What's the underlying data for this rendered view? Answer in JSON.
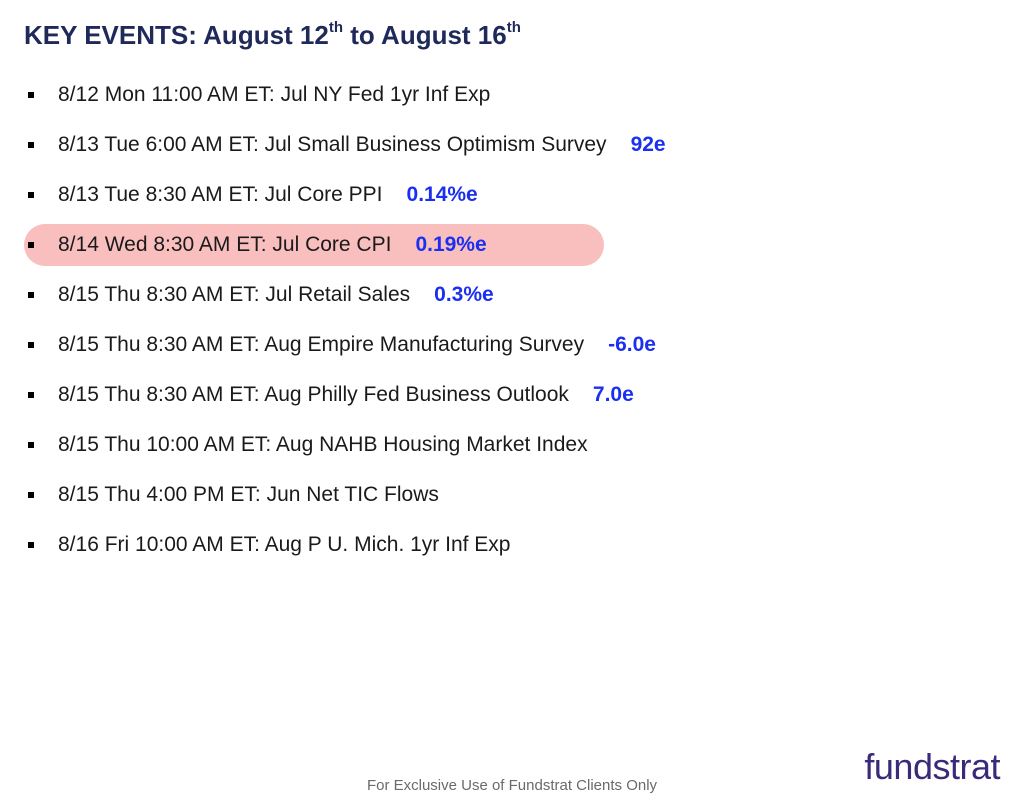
{
  "title": {
    "prefix": "KEY EVENTS: August 12",
    "sup1": "th",
    "mid": " to August 16",
    "sup2": "th"
  },
  "colors": {
    "title_color": "#1f2a5a",
    "text_color": "#1a1a1a",
    "estimate_color": "#1a2ff0",
    "highlight_bg": "#f9bfbf",
    "disclaimer_color": "#6a6a6a",
    "logo_color": "#3b2a7a",
    "bullet_color": "#000000",
    "background": "#ffffff"
  },
  "typography": {
    "title_fontsize": 26,
    "event_fontsize": 21,
    "sup_fontsize": 15,
    "disclaimer_fontsize": 15,
    "logo_fontsize": 36
  },
  "events": [
    {
      "text": "8/12 Mon 11:00 AM ET: Jul NY Fed 1yr Inf Exp",
      "estimate": "",
      "highlighted": false
    },
    {
      "text": "8/13 Tue 6:00 AM ET: Jul Small Business Optimism Survey",
      "estimate": "92e",
      "highlighted": false
    },
    {
      "text": "8/13 Tue 8:30 AM ET: Jul Core PPI",
      "estimate": "0.14%e",
      "highlighted": false
    },
    {
      "text": "8/14 Wed 8:30 AM ET: Jul Core CPI",
      "estimate": "0.19%e",
      "highlighted": true,
      "highlight_width": 580
    },
    {
      "text": "8/15 Thu 8:30 AM ET: Jul Retail Sales",
      "estimate": "0.3%e",
      "highlighted": false
    },
    {
      "text": "8/15 Thu 8:30 AM ET: Aug Empire Manufacturing Survey",
      "estimate": "-6.0e",
      "highlighted": false
    },
    {
      "text": "8/15 Thu 8:30 AM ET: Aug Philly Fed Business Outlook",
      "estimate": "7.0e",
      "highlighted": false
    },
    {
      "text": "8/15 Thu 10:00 AM ET: Aug NAHB Housing Market Index",
      "estimate": "",
      "highlighted": false
    },
    {
      "text": "8/15 Thu 4:00 PM ET: Jun Net TIC Flows",
      "estimate": "",
      "highlighted": false
    },
    {
      "text": "8/16 Fri 10:00 AM ET: Aug P U. Mich. 1yr Inf Exp",
      "estimate": "",
      "highlighted": false
    }
  ],
  "footer": {
    "disclaimer": "For Exclusive Use of Fundstrat Clients Only",
    "logo_prefix": "fund",
    "logo_suffix": "strat"
  }
}
